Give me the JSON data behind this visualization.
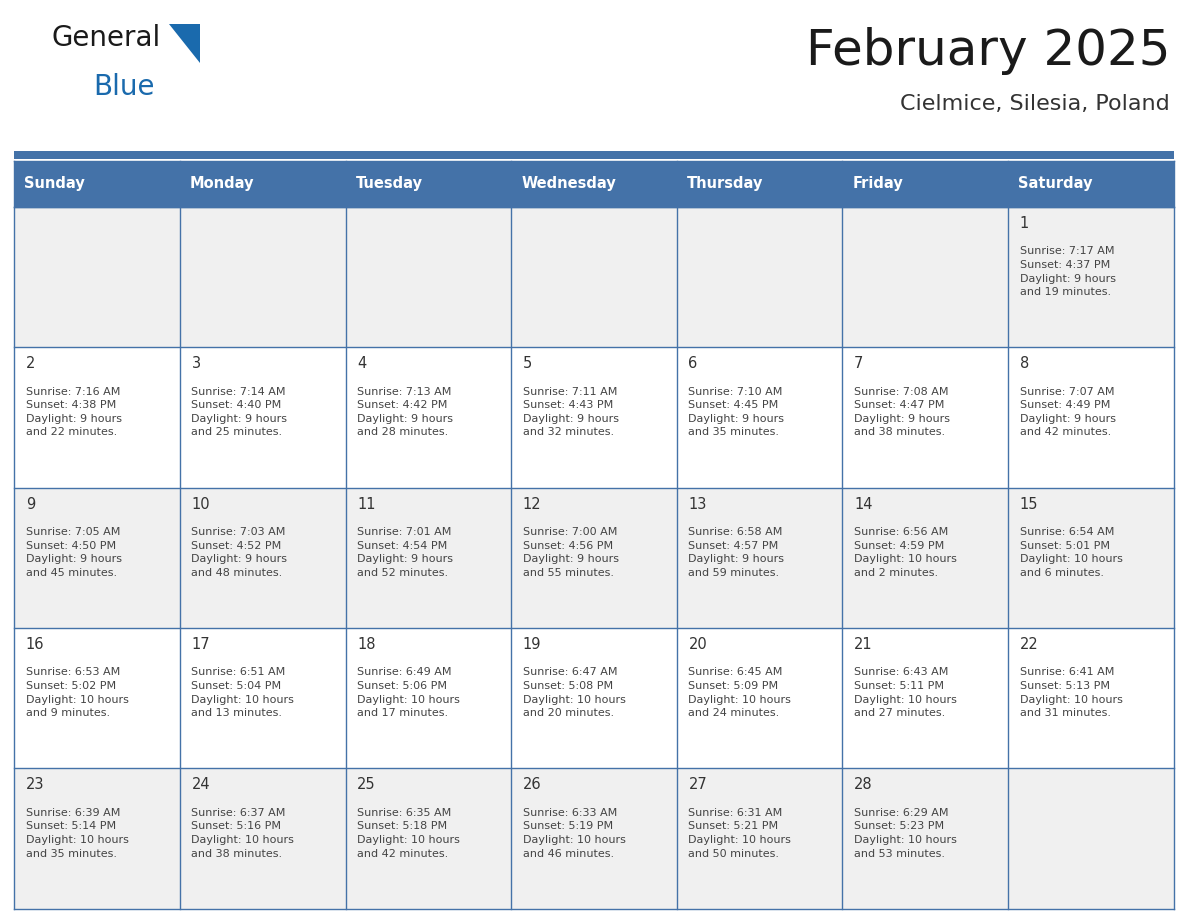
{
  "title": "February 2025",
  "subtitle": "Cielmice, Silesia, Poland",
  "header_bg": "#4472a8",
  "header_text": "#ffffff",
  "row_bg_light": "#f0f0f0",
  "row_bg_white": "#ffffff",
  "grid_line_color": "#4472a8",
  "day_headers": [
    "Sunday",
    "Monday",
    "Tuesday",
    "Wednesday",
    "Thursday",
    "Friday",
    "Saturday"
  ],
  "title_color": "#1a1a1a",
  "subtitle_color": "#333333",
  "date_color": "#333333",
  "info_color": "#444444",
  "logo_dark_color": "#1a1a1a",
  "logo_blue_color": "#1a6aad",
  "calendar": [
    [
      "",
      "",
      "",
      "",
      "",
      "",
      "1\nSunrise: 7:17 AM\nSunset: 4:37 PM\nDaylight: 9 hours\nand 19 minutes."
    ],
    [
      "2\nSunrise: 7:16 AM\nSunset: 4:38 PM\nDaylight: 9 hours\nand 22 minutes.",
      "3\nSunrise: 7:14 AM\nSunset: 4:40 PM\nDaylight: 9 hours\nand 25 minutes.",
      "4\nSunrise: 7:13 AM\nSunset: 4:42 PM\nDaylight: 9 hours\nand 28 minutes.",
      "5\nSunrise: 7:11 AM\nSunset: 4:43 PM\nDaylight: 9 hours\nand 32 minutes.",
      "6\nSunrise: 7:10 AM\nSunset: 4:45 PM\nDaylight: 9 hours\nand 35 minutes.",
      "7\nSunrise: 7:08 AM\nSunset: 4:47 PM\nDaylight: 9 hours\nand 38 minutes.",
      "8\nSunrise: 7:07 AM\nSunset: 4:49 PM\nDaylight: 9 hours\nand 42 minutes."
    ],
    [
      "9\nSunrise: 7:05 AM\nSunset: 4:50 PM\nDaylight: 9 hours\nand 45 minutes.",
      "10\nSunrise: 7:03 AM\nSunset: 4:52 PM\nDaylight: 9 hours\nand 48 minutes.",
      "11\nSunrise: 7:01 AM\nSunset: 4:54 PM\nDaylight: 9 hours\nand 52 minutes.",
      "12\nSunrise: 7:00 AM\nSunset: 4:56 PM\nDaylight: 9 hours\nand 55 minutes.",
      "13\nSunrise: 6:58 AM\nSunset: 4:57 PM\nDaylight: 9 hours\nand 59 minutes.",
      "14\nSunrise: 6:56 AM\nSunset: 4:59 PM\nDaylight: 10 hours\nand 2 minutes.",
      "15\nSunrise: 6:54 AM\nSunset: 5:01 PM\nDaylight: 10 hours\nand 6 minutes."
    ],
    [
      "16\nSunrise: 6:53 AM\nSunset: 5:02 PM\nDaylight: 10 hours\nand 9 minutes.",
      "17\nSunrise: 6:51 AM\nSunset: 5:04 PM\nDaylight: 10 hours\nand 13 minutes.",
      "18\nSunrise: 6:49 AM\nSunset: 5:06 PM\nDaylight: 10 hours\nand 17 minutes.",
      "19\nSunrise: 6:47 AM\nSunset: 5:08 PM\nDaylight: 10 hours\nand 20 minutes.",
      "20\nSunrise: 6:45 AM\nSunset: 5:09 PM\nDaylight: 10 hours\nand 24 minutes.",
      "21\nSunrise: 6:43 AM\nSunset: 5:11 PM\nDaylight: 10 hours\nand 27 minutes.",
      "22\nSunrise: 6:41 AM\nSunset: 5:13 PM\nDaylight: 10 hours\nand 31 minutes."
    ],
    [
      "23\nSunrise: 6:39 AM\nSunset: 5:14 PM\nDaylight: 10 hours\nand 35 minutes.",
      "24\nSunrise: 6:37 AM\nSunset: 5:16 PM\nDaylight: 10 hours\nand 38 minutes.",
      "25\nSunrise: 6:35 AM\nSunset: 5:18 PM\nDaylight: 10 hours\nand 42 minutes.",
      "26\nSunrise: 6:33 AM\nSunset: 5:19 PM\nDaylight: 10 hours\nand 46 minutes.",
      "27\nSunrise: 6:31 AM\nSunset: 5:21 PM\nDaylight: 10 hours\nand 50 minutes.",
      "28\nSunrise: 6:29 AM\nSunset: 5:23 PM\nDaylight: 10 hours\nand 53 minutes.",
      ""
    ]
  ]
}
